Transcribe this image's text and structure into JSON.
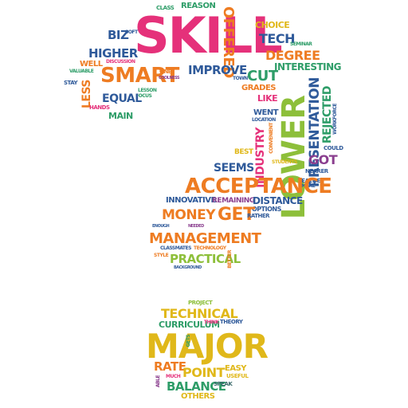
{
  "colors": {
    "pink": "#e5317a",
    "orange": "#ee7c22",
    "blue": "#2f5a9a",
    "green": "#2e9d68",
    "yellow": "#e0b81a",
    "lime": "#8dbf3a",
    "purple": "#8b3f8f",
    "teal": "#1f8a8a",
    "magenta": "#c23a8a",
    "gray": "#3a6a6a"
  },
  "words": {
    "class": "CLASS",
    "reason": "REASON",
    "skill": "SKILL",
    "offered": "OFFERED",
    "choice": "CHOICE",
    "biz": "BIZ",
    "soft": "SOFT",
    "tech": "TECH",
    "seminar": "SEMINAR",
    "higher": "HIGHER",
    "degree": "DEGREE",
    "well": "WELL",
    "discussion": "DISCUSSION",
    "interesting": "INTERESTING",
    "smart": "SMART",
    "valuable": "VALUABLE",
    "one": "ONE",
    "coolness": "COOLNESS",
    "improve": "IMPROVE",
    "town": "TOWN",
    "cut": "CUT",
    "stay": "STAY",
    "grades": "GRADES",
    "less": "LESS",
    "lesson": "LESSON",
    "focus": "FOCUS",
    "equal": "EQUAL",
    "like": "LIKE",
    "hands": "HANDS",
    "main": "MAIN",
    "went": "WENT",
    "location": "LOCATION",
    "lower": "LOWER",
    "presentation": "PRESENTATION",
    "rejected": "REJECTED",
    "workforce": "WORKFORCE",
    "industry": "INDUSTRY",
    "convenient": "CONVENIENT",
    "could": "COULD",
    "best": "BEST",
    "got": "GOT",
    "seems": "SEEMS",
    "students": "STUDENTS",
    "nearer": "NEARER",
    "teaches": "TEACHES",
    "make": "MAKE",
    "acceptance": "ACCEPTANCE",
    "innovative": "INNOVATIVE",
    "remaining": "REMAINING",
    "distance": "DISTANCE",
    "options": "OPTIONS",
    "money": "MONEY",
    "get": "GET",
    "rather": "RATHER",
    "enough": "ENOUGH",
    "needed": "NEEDED",
    "management": "MANAGEMENT",
    "classmates": "CLASSMATES",
    "technology": "TECHNOLOGY",
    "style": "STYLE",
    "practical": "PRACTICAL",
    "better": "BETTER",
    "background": "BACKGROUND",
    "project": "PROJECT",
    "technical": "TECHNICAL",
    "curriculum": "CURRICULUM",
    "think": "THINK",
    "theory": "THEORY",
    "major": "MAJOR",
    "gets": "GETS",
    "rate": "RATE",
    "point": "POINT",
    "easy": "EASY",
    "able": "ABLE",
    "much": "MUCH",
    "useful": "USEFUL",
    "balance": "BALANCE",
    "speak": "SPEAK",
    "others": "OTHERS"
  }
}
